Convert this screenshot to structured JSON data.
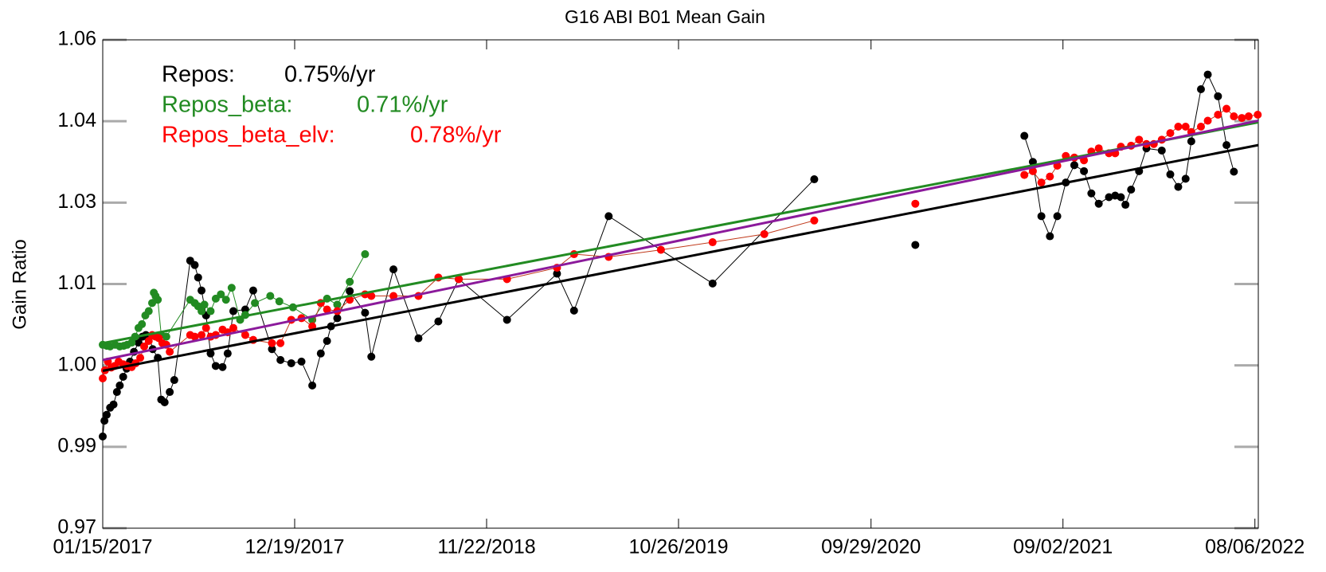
{
  "chart_data": {
    "type": "line",
    "title": "G16 ABI B01 Mean Gain",
    "ylabel": "Gain Ratio",
    "xlim": [
      "01/15/2017",
      "08/12/2022"
    ],
    "xticks": [
      "01/15/2017",
      "12/19/2017",
      "11/22/2018",
      "10/26/2019",
      "09/29/2020",
      "09/02/2021",
      "08/06/2022"
    ],
    "ylim": [
      0.97,
      1.06
    ],
    "yticks": [
      0.97,
      {
        "value": 0.985,
        "label": "0.99"
      },
      {
        "value": 1,
        "label": "1.00"
      },
      {
        "value": 1.015,
        "label": "1.01"
      },
      1.03,
      {
        "value": 1.045,
        "label": "1.04"
      },
      1.06
    ],
    "series": [
      {
        "name": "Repos:",
        "rate": "0.75%/yr",
        "color": "#000000",
        "fit_color": "#000000",
        "fit": {
          "x": [
            "01/15/2017",
            "08/12/2022"
          ],
          "values": [
            0.999,
            1.0406
          ]
        },
        "x": [
          "01/15/2017",
          "01/18/2017",
          "01/22/2017",
          "01/28/2017",
          "02/03/2017",
          "02/09/2017",
          "02/14/2017",
          "02/20/2017",
          "02/26/2017",
          "03/04/2017",
          "03/11/2017",
          "03/19/2017",
          "03/26/2017",
          "04/01/2017",
          "04/07/2017",
          "04/13/2017",
          "04/22/2017",
          "04/28/2017",
          "05/04/2017",
          "05/13/2017",
          "05/21/2017",
          "06/18/2017",
          "06/26/2017",
          "07/02/2017",
          "07/08/2017",
          "07/16/2017",
          "07/24/2017",
          "08/02/2017",
          "08/14/2017",
          "08/23/2017",
          "09/02/2017",
          "09/23/2017",
          "10/07/2017",
          "11/09/2017",
          "11/24/2017",
          "12/13/2017",
          "12/31/2017",
          "01/19/2018",
          "02/03/2018",
          "02/14/2018",
          "02/21/2018",
          "03/04/2018",
          "03/26/2018",
          "04/22/2018",
          "05/03/2018",
          "06/11/2018",
          "07/25/2018",
          "08/29/2018",
          "10/04/2018",
          "12/28/2018",
          "03/26/2019",
          "04/25/2019",
          "06/25/2019",
          "12/25/2019",
          "06/21/2020",
          "09/15/2020",
          "12/16/2020",
          "03/15/2021",
          "06/26/2021",
          "07/11/2021",
          "07/26/2021",
          "08/10/2021",
          "08/23/2021",
          "09/07/2021",
          "09/22/2021",
          "10/09/2021",
          "10/22/2021",
          "11/04/2021",
          "11/22/2021",
          "12/03/2021",
          "12/13/2021",
          "12/21/2021",
          "12/31/2021",
          "01/14/2022",
          "01/27/2022",
          "02/23/2022",
          "03/10/2022",
          "03/24/2022",
          "04/06/2022",
          "04/16/2022",
          "05/03/2022",
          "05/15/2022",
          "06/02/2022",
          "06/17/2022",
          "06/30/2022"
        ],
        "values": [
          0.9869,
          0.9898,
          0.9909,
          0.9922,
          0.9928,
          0.9951,
          0.9963,
          0.9979,
          0.9994,
          1.0007,
          1.0025,
          1.0042,
          1.0053,
          1.0056,
          1.0053,
          1.003,
          1.0014,
          0.9937,
          0.9932,
          0.9951,
          0.9973,
          1.0193,
          1.0185,
          1.0162,
          1.0138,
          1.0092,
          1.0022,
          0.9999,
          0.9997,
          1.0022,
          1.01,
          1.0103,
          1.0138,
          1.003,
          1.001,
          1.0004,
          1.0007,
          0.9963,
          1.0022,
          1.0045,
          1.0072,
          1.0087,
          1.0137,
          1.0097,
          1.0016,
          1.0177,
          1.005,
          1.0081,
          1.0159,
          1.0084,
          1.0169,
          1.0101,
          1.0275,
          1.0151,
          1.0343,
          null,
          1.0222,
          null,
          1.0423,
          1.0375,
          1.0275,
          1.0238,
          1.0275,
          1.0337,
          1.0369,
          1.0358,
          1.0317,
          1.0298,
          1.031,
          1.0313,
          1.031,
          1.0296,
          1.0324,
          1.0358,
          1.04,
          1.0396,
          1.0352,
          1.0329,
          1.0344,
          1.0413,
          1.0509,
          1.0536,
          1.0496,
          1.0406,
          1.0357
        ]
      },
      {
        "name": "Repos_beta:",
        "rate": "0.71%/yr",
        "color": "#228b22",
        "fit_color": "#228b22",
        "fit": {
          "x": [
            "01/15/2017",
            "08/12/2022"
          ],
          "values": [
            1.0041,
            1.0448
          ]
        },
        "x": [
          "01/15/2017",
          "01/22/2017",
          "01/28/2017",
          "02/06/2017",
          "02/14/2017",
          "02/21/2017",
          "02/27/2017",
          "03/07/2017",
          "03/13/2017",
          "03/19/2017",
          "03/25/2017",
          "03/31/2017",
          "04/06/2017",
          "04/12/2017",
          "04/15/2017",
          "04/18/2017",
          "04/22/2017",
          "04/28/2017",
          "05/07/2017",
          "06/18/2017",
          "06/26/2017",
          "07/02/2017",
          "07/08/2017",
          "07/13/2017",
          "07/24/2017",
          "08/02/2017",
          "08/11/2017",
          "08/20/2017",
          "08/30/2017",
          "09/14/2017",
          "09/23/2017",
          "10/10/2017",
          "11/06/2017",
          "11/22/2017",
          "12/16/2017",
          "01/19/2018",
          "02/14/2018",
          "03/04/2018",
          "03/26/2018",
          "04/22/2018"
        ],
        "values": [
          1.0038,
          1.0036,
          1.0035,
          1.0038,
          1.0035,
          1.0036,
          1.0038,
          1.0042,
          1.0053,
          1.0069,
          1.0076,
          1.0092,
          1.01,
          1.0115,
          1.0134,
          1.0128,
          1.0121,
          1.0056,
          1.0053,
          1.0121,
          1.0115,
          1.0109,
          1.01,
          1.0112,
          1.01,
          1.0123,
          1.0131,
          1.0121,
          1.0143,
          1.0084,
          1.0093,
          1.0115,
          1.0128,
          1.0118,
          1.0107,
          1.0084,
          1.0123,
          1.0112,
          1.0154,
          1.0205
        ]
      },
      {
        "name": "Repos_beta_elv:",
        "rate": "0.78%/yr",
        "color": "#ff0000",
        "line_color": "#c0391b",
        "fit_color": "#8b1a9b",
        "fit": {
          "x": [
            "01/15/2017",
            "08/12/2022"
          ],
          "values": [
            1.001,
            1.0451
          ]
        },
        "x": [
          "01/15/2017",
          "01/19/2017",
          "01/24/2017",
          "01/30/2017",
          "02/05/2017",
          "02/12/2017",
          "02/20/2017",
          "02/27/2017",
          "03/07/2017",
          "03/14/2017",
          "03/22/2017",
          "03/29/2017",
          "04/06/2017",
          "04/12/2017",
          "04/18/2017",
          "04/24/2017",
          "04/30/2017",
          "05/07/2017",
          "05/13/2017",
          "06/18/2017",
          "06/26/2017",
          "07/08/2017",
          "07/16/2017",
          "07/24/2017",
          "08/02/2017",
          "08/14/2017",
          "08/23/2017",
          "09/02/2017",
          "09/23/2017",
          "10/07/2017",
          "11/09/2017",
          "11/24/2017",
          "12/13/2017",
          "12/31/2017",
          "01/19/2018",
          "02/03/2018",
          "02/14/2018",
          "03/04/2018",
          "03/26/2018",
          "04/22/2018",
          "05/03/2018",
          "06/11/2018",
          "07/25/2018",
          "08/29/2018",
          "10/04/2018",
          "12/28/2018",
          "03/26/2019",
          "04/25/2019",
          "06/25/2019",
          "09/25/2019",
          "12/25/2019",
          "03/25/2020",
          "06/21/2020",
          "09/15/2020",
          "12/16/2020",
          "03/15/2021",
          "06/26/2021",
          "07/11/2021",
          "07/26/2021",
          "08/10/2021",
          "08/23/2021",
          "09/07/2021",
          "09/22/2021",
          "10/09/2021",
          "10/22/2021",
          "11/04/2021",
          "11/22/2021",
          "12/03/2021",
          "12/13/2021",
          "12/31/2021",
          "01/14/2022",
          "01/27/2022",
          "02/09/2022",
          "02/23/2022",
          "03/10/2022",
          "03/24/2022",
          "04/06/2022",
          "04/16/2022",
          "05/03/2022",
          "05/15/2022",
          "06/02/2022",
          "06/17/2022",
          "06/30/2022",
          "07/14/2022",
          "07/26/2022",
          "08/11/2022"
        ],
        "values": [
          0.9976,
          0.9991,
          1.0007,
          0.9996,
          0.9999,
          1.0007,
          1.0002,
          0.9999,
          0.9997,
          1.0004,
          1.0014,
          1.0035,
          1.0045,
          1.0056,
          1.0053,
          1.005,
          1.0041,
          1.0038,
          1.0025,
          1.0056,
          1.0053,
          1.0056,
          1.0069,
          1.0053,
          1.0056,
          1.0066,
          1.0061,
          1.0069,
          1.0056,
          1.0047,
          1.0041,
          1.0041,
          1.0084,
          1.0087,
          1.0072,
          1.0115,
          1.0103,
          1.01,
          1.0121,
          1.0131,
          1.0128,
          1.0128,
          1.0128,
          1.0162,
          1.0159,
          1.0159,
          1.018,
          1.0205,
          1.02,
          1.0213,
          1.0227,
          1.0242,
          1.0267,
          null,
          1.0298,
          null,
          1.0351,
          1.0358,
          1.0337,
          1.0348,
          1.0368,
          1.0386,
          1.0383,
          1.0378,
          1.0394,
          1.04,
          1.0391,
          1.0391,
          1.0403,
          1.0405,
          1.0416,
          1.0408,
          1.0408,
          1.0416,
          1.0428,
          1.044,
          1.044,
          1.043,
          1.044,
          1.0451,
          1.0462,
          1.0473,
          1.0459,
          1.0456,
          1.0459,
          1.0462
        ]
      }
    ]
  }
}
